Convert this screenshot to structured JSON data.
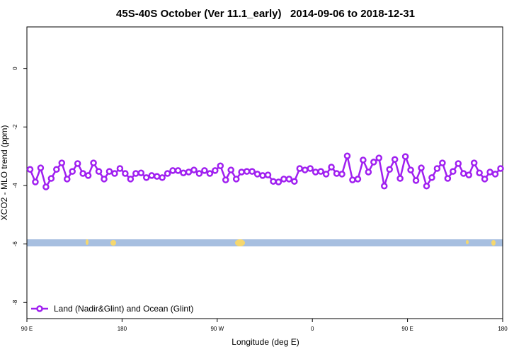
{
  "chart_data": {
    "type": "line",
    "title": "45S-40S October (Ver 11.1_early)   2014-09-06 to 2018-12-31",
    "x_label": "Longitude (deg E)",
    "y_label": "XCO2 - MLO trend (ppm)",
    "x": [
      93,
      98,
      103,
      108,
      113,
      118,
      123,
      128,
      133,
      138,
      143,
      148,
      153,
      158,
      163,
      168,
      173,
      178,
      183,
      188,
      193,
      198,
      203,
      208,
      213,
      218,
      223,
      228,
      233,
      238,
      243,
      248,
      253,
      258,
      263,
      268,
      273,
      278,
      283,
      288,
      293,
      298,
      303,
      308,
      313,
      318,
      323,
      328,
      333,
      338,
      343,
      348,
      353,
      358,
      363,
      368,
      373,
      378,
      383,
      388,
      393,
      398,
      403,
      408,
      413,
      418,
      423,
      428,
      433,
      438,
      443,
      448,
      453,
      458,
      463,
      468,
      473,
      478,
      483,
      488,
      493,
      498,
      503,
      508,
      513,
      518,
      523,
      528,
      533,
      538
    ],
    "series": [
      {
        "name": "Land (Nadir&Glint) and Ocean (Glint)",
        "color": "#a020f0",
        "values": [
          -3.45,
          -3.88,
          -3.4,
          -4.05,
          -3.76,
          -3.45,
          -3.23,
          -3.78,
          -3.52,
          -3.25,
          -3.59,
          -3.66,
          -3.23,
          -3.52,
          -3.78,
          -3.52,
          -3.59,
          -3.42,
          -3.59,
          -3.78,
          -3.59,
          -3.57,
          -3.73,
          -3.66,
          -3.69,
          -3.73,
          -3.59,
          -3.49,
          -3.49,
          -3.57,
          -3.54,
          -3.47,
          -3.59,
          -3.49,
          -3.59,
          -3.49,
          -3.33,
          -3.81,
          -3.47,
          -3.78,
          -3.54,
          -3.52,
          -3.52,
          -3.61,
          -3.66,
          -3.64,
          -3.86,
          -3.88,
          -3.78,
          -3.78,
          -3.86,
          -3.42,
          -3.47,
          -3.42,
          -3.54,
          -3.52,
          -3.61,
          -3.37,
          -3.59,
          -3.61,
          -2.99,
          -3.81,
          -3.78,
          -3.13,
          -3.54,
          -3.2,
          -3.06,
          -4.02,
          -3.45,
          -3.11,
          -3.76,
          -3.01,
          -3.47,
          -3.83,
          -3.4,
          -4.02,
          -3.73,
          -3.42,
          -3.23,
          -3.76,
          -3.52,
          -3.25,
          -3.59,
          -3.64,
          -3.23,
          -3.57,
          -3.78,
          -3.54,
          -3.61,
          -3.42
        ]
      }
    ],
    "xlim": [
      90,
      540
    ],
    "xticks": [
      {
        "value": 90,
        "label": "90 E"
      },
      180,
      {
        "value": 270,
        "label": "90 W"
      },
      {
        "value": 360,
        "label": "0"
      },
      {
        "value": 450,
        "label": "90 E"
      },
      {
        "value": 540,
        "label": "180"
      }
    ],
    "ylim": [
      -8.55,
      1.42
    ],
    "yticks": [
      0,
      -2,
      -4,
      -6,
      -8
    ],
    "legend": "bottom-left"
  }
}
